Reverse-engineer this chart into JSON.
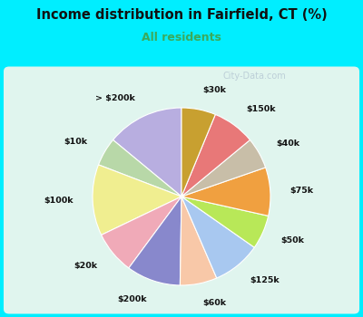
{
  "title": "Income distribution in Fairfield, CT (%)",
  "subtitle": "All residents",
  "title_color": "#111111",
  "subtitle_color": "#3aaa5c",
  "background_outer": "#00eeff",
  "background_inner_top": "#e0f5ee",
  "background_inner_bottom": "#d5eedf",
  "watermark": "City-Data.com",
  "labels": [
    "> $200k",
    "$10k",
    "$100k",
    "$20k",
    "$200k",
    "$60k",
    "$125k",
    "$50k",
    "$75k",
    "$40k",
    "$150k",
    "$30k"
  ],
  "values": [
    13.5,
    5.0,
    12.5,
    7.5,
    9.5,
    6.5,
    8.5,
    6.0,
    8.5,
    5.5,
    7.5,
    6.0
  ],
  "colors": [
    "#b8aee0",
    "#b8d8a8",
    "#f0ee90",
    "#f0aab8",
    "#8888cc",
    "#f8c8a8",
    "#a8c8f0",
    "#b8e858",
    "#f0a040",
    "#c8bea8",
    "#e87878",
    "#c8a030"
  ],
  "startangle": 90,
  "labeldistance": 1.22,
  "figsize": [
    4.0,
    3.5
  ],
  "dpi": 100
}
